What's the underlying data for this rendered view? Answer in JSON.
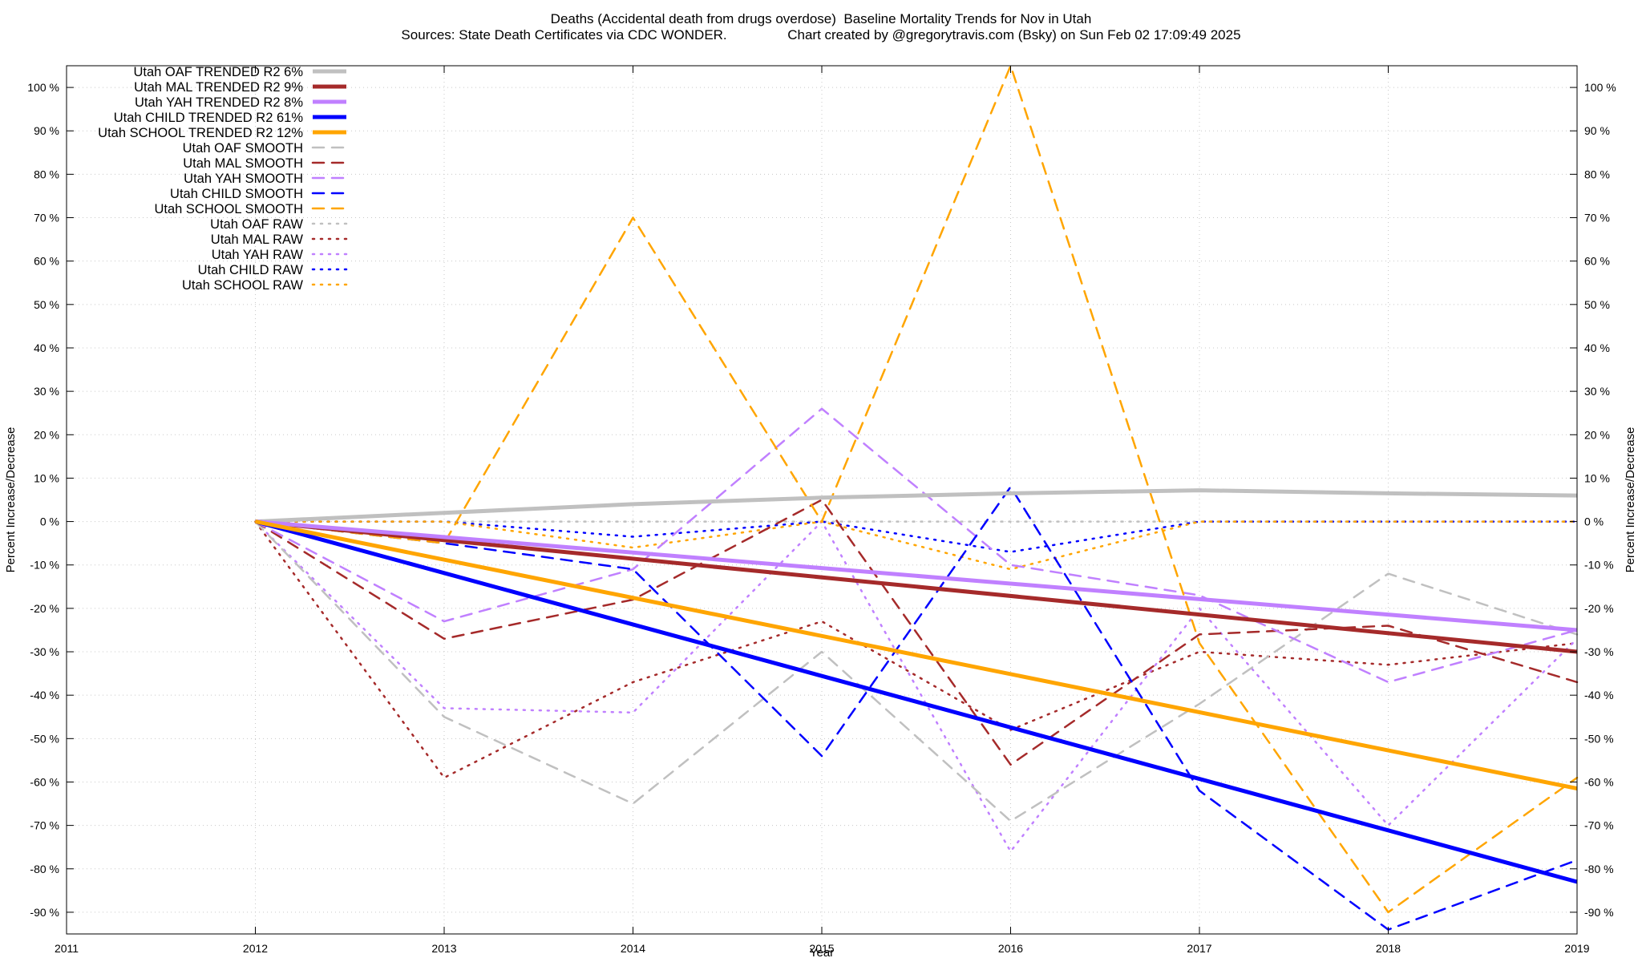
{
  "title": {
    "line1": "Deaths (Accidental death from drugs overdose)  Baseline Mortality Trends for Nov in Utah",
    "line2": "Sources: State Death Certificates via CDC WONDER.                Chart created by @gregorytravis.com (Bsky) on Sun Feb 02 17:09:49 2025"
  },
  "chart_data": {
    "type": "line",
    "xlabel": "Year",
    "ylabel": "Percent Increase/Decrease",
    "xlim": [
      2011,
      2019
    ],
    "ylim": [
      -95,
      105
    ],
    "x_ticks": [
      2011,
      2012,
      2013,
      2014,
      2015,
      2016,
      2017,
      2018,
      2019
    ],
    "y_ticks": [
      100,
      90,
      80,
      70,
      60,
      50,
      40,
      30,
      20,
      10,
      0,
      -10,
      -20,
      -30,
      -40,
      -50,
      -60,
      -70,
      -80,
      -90
    ],
    "y_tick_suffix": " %",
    "grid": true,
    "legend_position": "top-left",
    "series": [
      {
        "name": "Utah OAF TRENDED R2",
        "r2": "6%",
        "color": "#c0c0c0",
        "style": "trend",
        "x": [
          2012,
          2013,
          2014,
          2015,
          2016,
          2017,
          2018,
          2019
        ],
        "y": [
          0,
          2,
          4,
          5.5,
          6.5,
          7.2,
          6.5,
          6
        ]
      },
      {
        "name": "Utah MAL TRENDED R2",
        "r2": "9%",
        "color": "#a52a2a",
        "style": "trend",
        "x": [
          2012,
          2019
        ],
        "y": [
          0,
          -30
        ]
      },
      {
        "name": "Utah YAH TRENDED R2",
        "r2": "8%",
        "color": "#c080ff",
        "style": "trend",
        "x": [
          2012,
          2019
        ],
        "y": [
          0,
          -25
        ]
      },
      {
        "name": "Utah CHILD TRENDED R2",
        "r2": "61%",
        "color": "#0000ff",
        "style": "trend",
        "x": [
          2012,
          2019
        ],
        "y": [
          0,
          -83
        ]
      },
      {
        "name": "Utah SCHOOL TRENDED R2",
        "r2": "12%",
        "color": "#ffa500",
        "style": "trend",
        "x": [
          2012,
          2019
        ],
        "y": [
          0,
          -61.5
        ]
      },
      {
        "name": "Utah OAF SMOOTH",
        "color": "#c0c0c0",
        "style": "smooth",
        "x": [
          2012,
          2013,
          2014,
          2015,
          2016,
          2017,
          2018,
          2019
        ],
        "y": [
          0,
          -45,
          -65,
          -30,
          -69,
          -42,
          -12,
          -26
        ]
      },
      {
        "name": "Utah MAL SMOOTH",
        "color": "#a52a2a",
        "style": "smooth",
        "x": [
          2012,
          2013,
          2014,
          2015,
          2016,
          2017,
          2018,
          2019
        ],
        "y": [
          0,
          -27,
          -18,
          5,
          -56,
          -26,
          -24,
          -37
        ]
      },
      {
        "name": "Utah YAH SMOOTH",
        "color": "#c080ff",
        "style": "smooth",
        "x": [
          2012,
          2013,
          2014,
          2015,
          2016,
          2017,
          2018,
          2019
        ],
        "y": [
          0,
          -23,
          -11,
          26,
          -10,
          -17,
          -37,
          -25
        ]
      },
      {
        "name": "Utah CHILD SMOOTH",
        "color": "#0000ff",
        "style": "smooth",
        "x": [
          2012,
          2013,
          2014,
          2015,
          2016,
          2017,
          2018,
          2019
        ],
        "y": [
          0,
          -5,
          -11,
          -54,
          8,
          -62,
          -94,
          -78
        ]
      },
      {
        "name": "Utah SCHOOL SMOOTH",
        "color": "#ffa500",
        "style": "smooth",
        "x": [
          2012,
          2013,
          2014,
          2015,
          2016,
          2017,
          2018,
          2019
        ],
        "y": [
          0,
          -5,
          70,
          0,
          105,
          -28,
          -90,
          -59
        ]
      },
      {
        "name": "Utah OAF RAW",
        "color": "#c0c0c0",
        "style": "raw",
        "x": [
          2012,
          2013,
          2014,
          2015,
          2016,
          2017,
          2018,
          2019
        ],
        "y": [
          0,
          0,
          0,
          0,
          0,
          0,
          0,
          0
        ]
      },
      {
        "name": "Utah MAL RAW",
        "color": "#a52a2a",
        "style": "raw",
        "x": [
          2012,
          2013,
          2014,
          2015,
          2016,
          2017,
          2018,
          2019
        ],
        "y": [
          0,
          -59,
          -37,
          -23,
          -48,
          -30,
          -33,
          -28
        ]
      },
      {
        "name": "Utah YAH RAW",
        "color": "#c080ff",
        "style": "raw",
        "x": [
          2012,
          2013,
          2014,
          2015,
          2016,
          2017,
          2018,
          2019
        ],
        "y": [
          0,
          -43,
          -44,
          0,
          -76,
          -20,
          -70,
          -27
        ]
      },
      {
        "name": "Utah CHILD RAW",
        "color": "#0000ff",
        "style": "raw",
        "x": [
          2012,
          2013,
          2014,
          2015,
          2016,
          2017,
          2018,
          2019
        ],
        "y": [
          0,
          0,
          -3.5,
          0,
          -7,
          0,
          0,
          0
        ]
      },
      {
        "name": "Utah SCHOOL RAW",
        "color": "#ffa500",
        "style": "raw",
        "x": [
          2012,
          2013,
          2014,
          2015,
          2016,
          2017,
          2018,
          2019
        ],
        "y": [
          0,
          0,
          -6,
          0,
          -11,
          0,
          0,
          0
        ]
      }
    ]
  }
}
